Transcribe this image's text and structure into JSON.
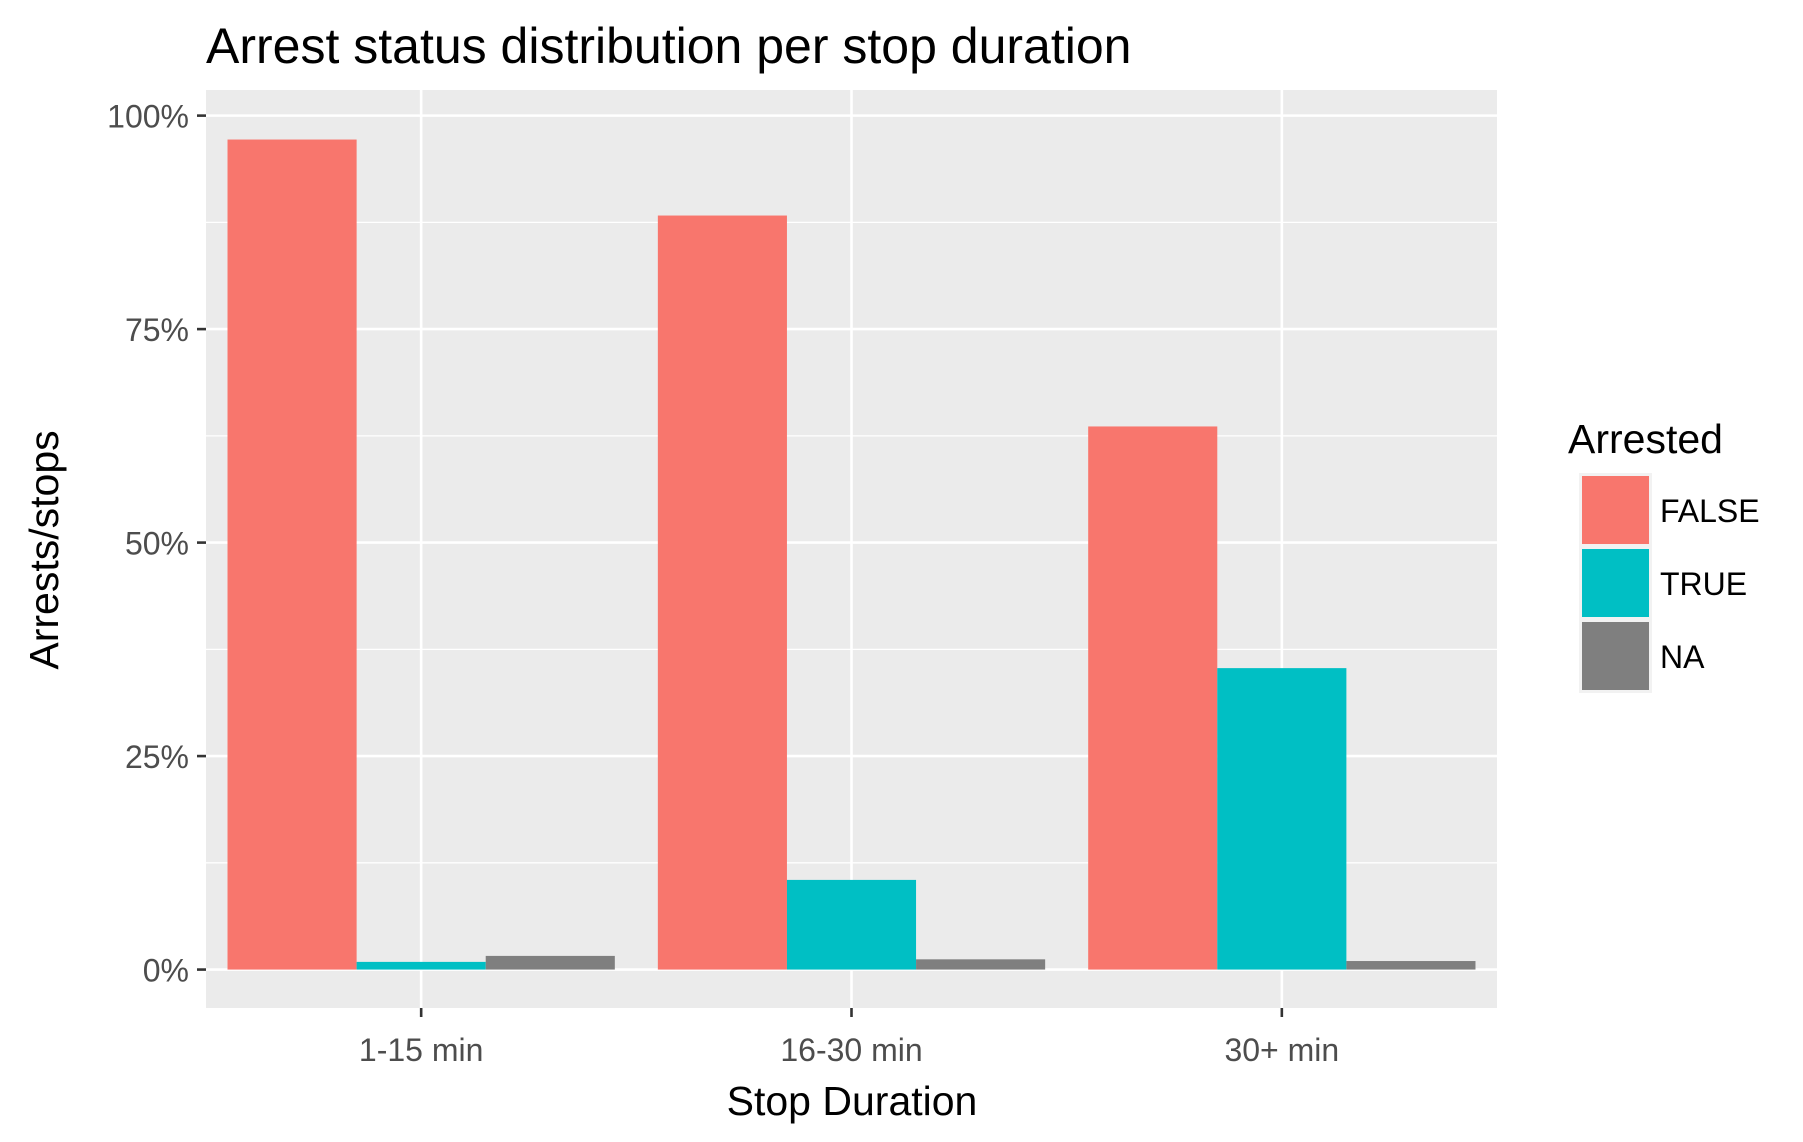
{
  "chart_data": {
    "type": "bar",
    "title": "Arrest status distribution per stop duration",
    "xlabel": "Stop Duration",
    "ylabel": "Arrests/stops",
    "categories": [
      "1-15 min",
      "16-30 min",
      "30+ min"
    ],
    "series": [
      {
        "name": "FALSE",
        "color": "#F8766D",
        "values": [
          0.972,
          0.883,
          0.636
        ]
      },
      {
        "name": "TRUE",
        "color": "#00BFC4",
        "values": [
          0.009,
          0.105,
          0.353
        ]
      },
      {
        "name": "NA",
        "color": "#7F7F7F",
        "values": [
          0.016,
          0.012,
          0.01
        ]
      }
    ],
    "ylim": [
      -0.045,
      1.03
    ],
    "yticks": [
      {
        "value": 0,
        "label": "0%"
      },
      {
        "value": 0.25,
        "label": "25%"
      },
      {
        "value": 0.5,
        "label": "50%"
      },
      {
        "value": 0.75,
        "label": "75%"
      },
      {
        "value": 1,
        "label": "100%"
      }
    ],
    "legend": {
      "title": "Arrested",
      "position": "right"
    },
    "grid": true,
    "panel_background": "#EBEBEB",
    "grid_color": "#FFFFFF"
  }
}
